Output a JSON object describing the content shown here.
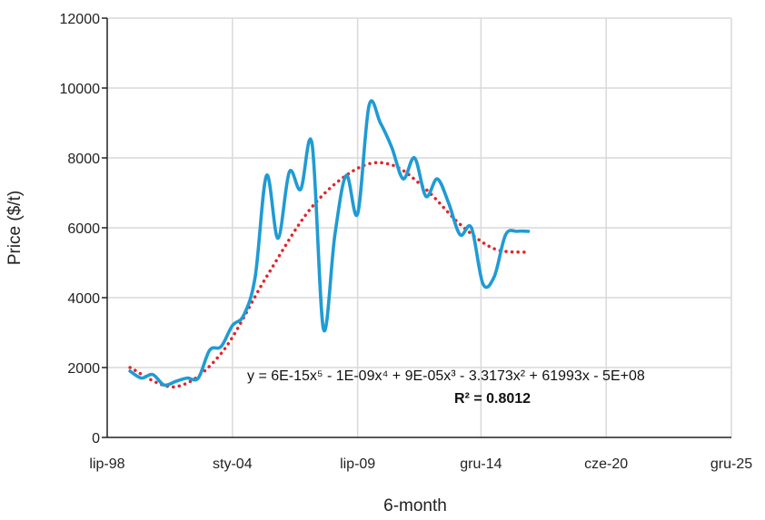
{
  "chart_data": {
    "type": "line",
    "xlabel": "6-month",
    "ylabel": "Price ($/t)",
    "x_tick_labels": [
      "lip-98",
      "sty-04",
      "lip-09",
      "gru-14",
      "cze-20",
      "gru-25"
    ],
    "x_tick_dates": [
      "1998-07",
      "2004-01",
      "2009-07",
      "2014-12",
      "2020-06",
      "2025-12"
    ],
    "xlim": [
      "1998-07",
      "2025-12"
    ],
    "y_ticks": [
      0,
      2000,
      4000,
      6000,
      8000,
      10000,
      12000
    ],
    "ylim": [
      0,
      12000
    ],
    "grid": true,
    "legend": "none",
    "colors": {
      "series": "#1f9bd4",
      "trend": "#e0252b",
      "grid": "#d9d9d9",
      "axis": "#222222"
    },
    "series": [
      {
        "x": [
          "1999-07",
          "2000-01",
          "2000-07",
          "2001-01",
          "2001-07",
          "2002-01",
          "2002-07",
          "2003-01",
          "2003-07",
          "2004-01",
          "2004-07",
          "2005-01",
          "2005-07",
          "2006-01",
          "2006-07",
          "2007-01",
          "2007-07",
          "2008-01",
          "2008-07",
          "2009-01",
          "2009-07",
          "2010-01",
          "2010-07",
          "2011-01",
          "2011-07",
          "2012-01",
          "2012-07",
          "2013-01",
          "2013-07",
          "2014-01",
          "2014-07",
          "2015-01",
          "2015-07",
          "2016-01",
          "2016-07",
          "2017-01"
        ],
        "values": [
          1900,
          1700,
          1800,
          1500,
          1600,
          1700,
          1700,
          2500,
          2600,
          3200,
          3500,
          4600,
          7500,
          5700,
          7600,
          7100,
          8400,
          3100,
          5800,
          7500,
          6400,
          9500,
          9000,
          8300,
          7400,
          8000,
          6900,
          7400,
          6700,
          5800,
          6000,
          4400,
          4600,
          5800,
          5900,
          5900
        ]
      }
    ],
    "trendline": {
      "type": "polynomial",
      "order": 5,
      "equation": "y = 6E-15x⁵ - 1E-09x⁴ + 9E-05x³ - 3.3173x² + 61993x - 5E+08",
      "r_squared": "R² = 0.8012",
      "x": [
        "1999-07",
        "2001-07",
        "2003-07",
        "2005-07",
        "2007-07",
        "2009-07",
        "2011-01",
        "2012-07",
        "2014-01",
        "2015-07",
        "2017-01"
      ],
      "values": [
        2000,
        1450,
        2400,
        4600,
        6600,
        7700,
        7800,
        7100,
        6100,
        5400,
        5300
      ]
    }
  }
}
